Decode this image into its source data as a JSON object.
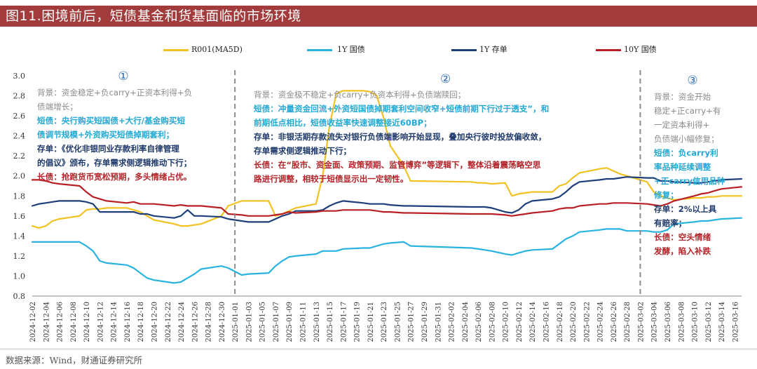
{
  "title": "图11.困境前后，短债基金和货基面临的市场环境",
  "source": "数据来源：Wind，财通证券研究所",
  "colors": {
    "r001": "#f2c222",
    "y1_gov": "#29b3e0",
    "y1_cd": "#1e3f7a",
    "y10_gov": "#b82025",
    "divider": "#8c8c8c"
  },
  "legend": [
    {
      "key": "r001",
      "label": "R001(MA5D)"
    },
    {
      "key": "y1_gov",
      "label": "1Y 国债"
    },
    {
      "key": "y1_cd",
      "label": "1Y 存单"
    },
    {
      "key": "y10_gov",
      "label": "10Y 国债"
    }
  ],
  "annotations": [
    {
      "marker": "①",
      "lines": [
        {
          "style": "bg",
          "text": "背景：资金稳定+负carry+正资本利得+负"
        },
        {
          "style": "bg",
          "text": "债端增长；"
        },
        {
          "style": "st",
          "text": "短债：央行购买短国债+大行/基金购买短"
        },
        {
          "style": "st",
          "text": "债调节规模+外资购买短债掉期套利；"
        },
        {
          "style": "cd",
          "text": "存单：《优化非银同业存款利率自律管理"
        },
        {
          "style": "cd",
          "text": "的倡议》颁布，存单需求侧逻辑推动下行；"
        },
        {
          "style": "lt",
          "text": "长债：抢跑货币宽松预期，多头情绪占优。"
        }
      ]
    },
    {
      "marker": "②",
      "lines": [
        {
          "style": "bg",
          "text": "背景：资金极不稳定+负carry+负资本利得+负债端赎回；"
        },
        {
          "style": "st",
          "text": "短债：冲量资金回流+外资短国债掉期套利空间收窄+短债前期下行过于透支”，和"
        },
        {
          "style": "st",
          "text": "前期低点相比，短债收益率快速调整接近60BP；"
        },
        {
          "style": "cd",
          "text": "存单：非银活期存款流失对银行负债端影响开始显现，叠加央行彼时投放偏收敛，"
        },
        {
          "style": "cd",
          "text": "存单需求侧逻辑推动下行；"
        },
        {
          "style": "lt",
          "text": "长债：在“股市、资金面、政策预期、监管博弈”等逻辑下，整体沿着震荡略空思"
        },
        {
          "style": "lt",
          "text": "路进行调整，相较于短债显示出一定韧性。"
        }
      ]
    },
    {
      "marker": "③",
      "lines": [
        {
          "style": "bg",
          "text": "背景：资金开始"
        },
        {
          "style": "bg",
          "text": "稳定+正carry+有"
        },
        {
          "style": "bg",
          "text": "一定资本利得+"
        },
        {
          "style": "bg",
          "text": "负债端小幅修复；"
        },
        {
          "style": "st",
          "text": "短债：负carry利"
        },
        {
          "style": "st",
          "text": "率品种延续调整"
        },
        {
          "style": "st",
          "text": "+正carry信用品种"
        },
        {
          "style": "st",
          "text": "修复；"
        },
        {
          "style": "cd",
          "text": "存单：2%以上具"
        },
        {
          "style": "cd",
          "text": "有赔率；"
        },
        {
          "style": "lt",
          "text": "长债：空头情绪"
        },
        {
          "style": "lt",
          "text": "发酵，陷入补跌"
        }
      ]
    }
  ],
  "chart_data": {
    "type": "line",
    "x": [
      "2024-12-02",
      "2024-12-03",
      "2024-12-04",
      "2024-12-05",
      "2024-12-06",
      "2024-12-09",
      "2024-12-10",
      "2024-12-11",
      "2024-12-12",
      "2024-12-13",
      "2024-12-16",
      "2024-12-17",
      "2024-12-18",
      "2024-12-19",
      "2024-12-20",
      "2024-12-23",
      "2024-12-24",
      "2024-12-25",
      "2024-12-26",
      "2024-12-27",
      "2024-12-30",
      "2024-12-31",
      "2025-01-02",
      "2025-01-03",
      "2025-01-06",
      "2025-01-07",
      "2025-01-08",
      "2025-01-09",
      "2025-01-10",
      "2025-01-13",
      "2025-01-14",
      "2025-01-15",
      "2025-01-16",
      "2025-01-17",
      "2025-01-20",
      "2025-01-21",
      "2025-01-22",
      "2025-01-23",
      "2025-01-24",
      "2025-01-26",
      "2025-01-27",
      "2025-02-05",
      "2025-02-06",
      "2025-02-07",
      "2025-02-08",
      "2025-02-10",
      "2025-02-11",
      "2025-02-12",
      "2025-02-13",
      "2025-02-14",
      "2025-02-17",
      "2025-02-18",
      "2025-02-19",
      "2025-02-20",
      "2025-02-21",
      "2025-02-24",
      "2025-02-25",
      "2025-02-26",
      "2025-02-27",
      "2025-02-28",
      "2025-03-03",
      "2025-03-04",
      "2025-03-05",
      "2025-03-06",
      "2025-03-07",
      "2025-03-10",
      "2025-03-11",
      "2025-03-12",
      "2025-03-13",
      "2025-03-14",
      "2025-03-17"
    ],
    "x_tick_labels": [
      "2024-12-02",
      "2024-12-04",
      "2024-12-06",
      "2024-12-08",
      "2024-12-10",
      "2024-12-12",
      "2024-12-14",
      "2024-12-16",
      "2024-12-18",
      "2024-12-20",
      "2024-12-22",
      "2024-12-24",
      "2024-12-26",
      "2024-12-28",
      "2024-12-30",
      "2025-01-01",
      "2025-01-03",
      "2025-01-05",
      "2025-01-07",
      "2025-01-09",
      "2025-01-11",
      "2025-01-13",
      "2025-01-15",
      "2025-01-17",
      "2025-01-19",
      "2025-01-21",
      "2025-01-23",
      "2025-01-25",
      "2025-01-27",
      "2025-01-29",
      "2025-01-31",
      "2025-02-02",
      "2025-02-04",
      "2025-02-06",
      "2025-02-08",
      "2025-02-10",
      "2025-02-12",
      "2025-02-14",
      "2025-02-16",
      "2025-02-18",
      "2025-02-20",
      "2025-02-22",
      "2025-02-24",
      "2025-02-26",
      "2025-02-28",
      "2025-03-02",
      "2025-03-04",
      "2025-03-06",
      "2025-03-08",
      "2025-03-10",
      "2025-03-12",
      "2025-03-14",
      "2025-03-16"
    ],
    "ylim": [
      0.8,
      3.0
    ],
    "yticks": [
      "0.8",
      "1.0",
      "1.2",
      "1.4",
      "1.6",
      "1.8",
      "2.0",
      "2.2",
      "2.4",
      "2.6",
      "2.8",
      "3.0"
    ],
    "grid": false,
    "legend_position": "top",
    "dividers": [
      "2025-01-01",
      "2025-03-02"
    ],
    "series": [
      {
        "key": "r001",
        "name": "R001(MA5D)",
        "values": [
          1.5,
          1.48,
          1.5,
          1.55,
          1.57,
          1.6,
          1.66,
          1.67,
          1.67,
          1.68,
          1.68,
          1.66,
          1.64,
          1.6,
          1.56,
          1.52,
          1.5,
          1.5,
          1.51,
          1.52,
          1.6,
          1.7,
          1.75,
          1.75,
          1.75,
          1.6,
          1.62,
          1.65,
          1.68,
          1.72,
          2.0,
          2.5,
          2.82,
          2.85,
          2.85,
          2.84,
          2.8,
          2.58,
          2.3,
          2.1,
          1.95,
          1.94,
          1.93,
          1.93,
          1.92,
          1.93,
          1.8,
          1.82,
          1.83,
          1.84,
          1.84,
          1.9,
          1.92,
          1.98,
          2.03,
          2.07,
          2.08,
          2.05,
          2.02,
          2.0,
          1.94,
          1.84,
          1.8,
          1.78,
          1.76,
          1.78,
          1.78,
          1.79,
          1.79,
          1.8,
          1.8
        ]
      },
      {
        "key": "y1_gov",
        "name": "1Y 国债",
        "values": [
          1.34,
          1.34,
          1.34,
          1.34,
          1.34,
          1.34,
          1.3,
          1.25,
          1.15,
          1.13,
          1.11,
          1.08,
          1.03,
          0.98,
          0.96,
          0.93,
          0.94,
          0.98,
          1.02,
          1.07,
          1.1,
          1.08,
          1.01,
          1.02,
          1.03,
          1.1,
          1.15,
          1.19,
          1.2,
          1.22,
          1.25,
          1.25,
          1.25,
          1.27,
          1.28,
          1.28,
          1.3,
          1.32,
          1.33,
          1.34,
          1.3,
          1.28,
          1.27,
          1.26,
          1.25,
          1.22,
          1.21,
          1.23,
          1.25,
          1.26,
          1.27,
          1.32,
          1.37,
          1.4,
          1.44,
          1.46,
          1.47,
          1.47,
          1.47,
          1.45,
          1.45,
          1.44,
          1.44,
          1.46,
          1.52,
          1.54,
          1.55,
          1.55,
          1.56,
          1.57,
          1.58
        ]
      },
      {
        "key": "y1_cd",
        "name": "1Y 存单",
        "values": [
          1.7,
          1.72,
          1.73,
          1.74,
          1.75,
          1.75,
          1.74,
          1.72,
          1.64,
          1.64,
          1.64,
          1.64,
          1.62,
          1.62,
          1.6,
          1.58,
          1.6,
          1.66,
          1.6,
          1.6,
          1.59,
          1.57,
          1.55,
          1.54,
          1.54,
          1.57,
          1.6,
          1.62,
          1.65,
          1.65,
          1.66,
          1.7,
          1.73,
          1.75,
          1.73,
          1.72,
          1.72,
          1.72,
          1.71,
          1.7,
          1.7,
          1.69,
          1.69,
          1.69,
          1.68,
          1.64,
          1.63,
          1.66,
          1.72,
          1.75,
          1.77,
          1.79,
          1.84,
          1.9,
          1.94,
          1.96,
          1.97,
          1.97,
          1.98,
          1.99,
          1.98,
          1.98,
          1.95,
          1.95,
          1.94,
          1.93,
          1.93,
          1.94,
          1.95,
          1.96,
          1.97
        ]
      },
      {
        "key": "y10_gov",
        "name": "10Y 国债",
        "values": [
          1.96,
          1.96,
          1.95,
          1.93,
          1.92,
          1.9,
          1.84,
          1.79,
          1.77,
          1.75,
          1.73,
          1.74,
          1.72,
          1.72,
          1.72,
          1.7,
          1.71,
          1.7,
          1.7,
          1.7,
          1.68,
          1.62,
          1.61,
          1.6,
          1.6,
          1.61,
          1.62,
          1.64,
          1.63,
          1.64,
          1.65,
          1.65,
          1.65,
          1.66,
          1.66,
          1.66,
          1.65,
          1.64,
          1.64,
          1.63,
          1.63,
          1.62,
          1.62,
          1.62,
          1.62,
          1.61,
          1.6,
          1.61,
          1.62,
          1.63,
          1.65,
          1.67,
          1.68,
          1.68,
          1.7,
          1.72,
          1.72,
          1.73,
          1.73,
          1.73,
          1.72,
          1.71,
          1.7,
          1.72,
          1.75,
          1.8,
          1.82,
          1.83,
          1.85,
          1.87,
          1.89
        ]
      }
    ]
  }
}
